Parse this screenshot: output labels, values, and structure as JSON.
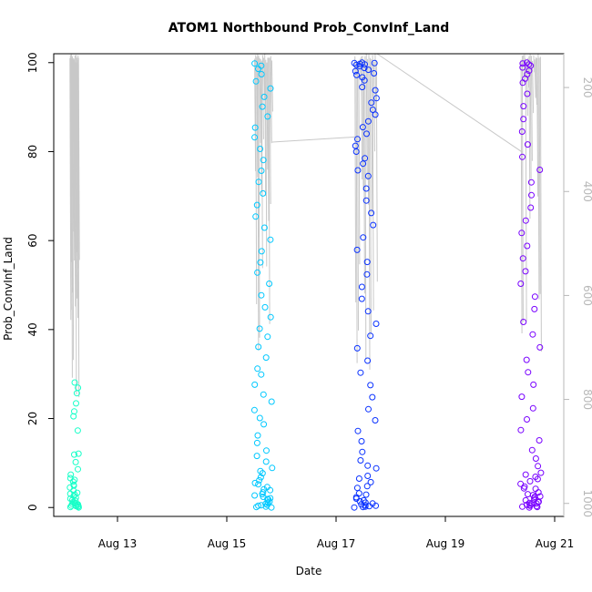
{
  "chart_data": {
    "type": "scatter",
    "title": "ATOM1 Northbound Prob_ConvInf_Land",
    "xlabel": "Date",
    "ylabel": "Prob_ConvInf_Land",
    "x_axis_type": "date",
    "xlim": [
      "2021-08-11T20:00",
      "2021-08-21T04:00"
    ],
    "ylim": [
      -2,
      102
    ],
    "x_ticks": [
      {
        "date": "2021-08-13",
        "label": "Aug 13"
      },
      {
        "date": "2021-08-15",
        "label": "Aug 15"
      },
      {
        "date": "2021-08-17",
        "label": "Aug 17"
      },
      {
        "date": "2021-08-19",
        "label": "Aug 19"
      },
      {
        "date": "2021-08-21",
        "label": "Aug 21"
      }
    ],
    "y_ticks": [
      0,
      20,
      40,
      60,
      80,
      100
    ],
    "secondary_y": {
      "side": "right",
      "color": "#b8b8b8",
      "reversed": true,
      "ylim": [
        1025,
        135
      ],
      "ticks": [
        200,
        400,
        600,
        800,
        1000
      ]
    },
    "grid": false,
    "legend": "none",
    "point_style": "open-circle",
    "pressure_trace_color": "#c8c8c8",
    "series": [
      {
        "color": "#17ffc8",
        "time_range": [
          "2021-08-12T03:00",
          "2021-08-12T07:00"
        ],
        "y": [
          0.3,
          0.5,
          0.8,
          1.2,
          0.1,
          0.6,
          2.0,
          3.1,
          0.4,
          1.7,
          4.5,
          0.9,
          2.6,
          5.8,
          6.2,
          0.2,
          1.1,
          3.8,
          7.4,
          8.6,
          10.2,
          11.9,
          0.7,
          2.2,
          4.9,
          12.1,
          17.3,
          20.5,
          21.6,
          23.4,
          25.7,
          26.9,
          28.1,
          0.0,
          1.5,
          3.3,
          5.1,
          6.6,
          0.3,
          2.9
        ]
      },
      {
        "color": "#00c8ff",
        "time_range": [
          "2021-08-15T12:00",
          "2021-08-15T20:00"
        ],
        "y": [
          0.2,
          0.5,
          1.1,
          1.8,
          2.4,
          3.0,
          3.9,
          4.6,
          5.5,
          6.8,
          7.7,
          8.9,
          10.3,
          11.6,
          12.8,
          14.5,
          16.2,
          18.7,
          20.1,
          21.9,
          23.8,
          25.4,
          27.6,
          29.9,
          31.2,
          33.7,
          36.1,
          38.4,
          40.2,
          42.8,
          45.0,
          47.7,
          50.3,
          52.8,
          55.1,
          57.6,
          60.2,
          62.9,
          65.4,
          68.0,
          70.6,
          73.2,
          75.7,
          78.1,
          80.6,
          83.2,
          85.4,
          87.9,
          90.1,
          92.3,
          94.2,
          95.8,
          97.4,
          98.6,
          99.3,
          99.8,
          0.1,
          0.6,
          1.3,
          2.7,
          4.1,
          6.1,
          8.2,
          0.4,
          1.9,
          3.4,
          5.2,
          0.8,
          2.1,
          0.0
        ]
      },
      {
        "color": "#0a32ff",
        "time_range": [
          "2021-08-17T08:00",
          "2021-08-17T18:00"
        ],
        "y": [
          0.1,
          0.4,
          0.9,
          1.6,
          2.3,
          3.2,
          4.4,
          5.7,
          7.1,
          8.8,
          10.6,
          12.5,
          14.9,
          17.2,
          19.6,
          22.1,
          24.8,
          27.5,
          30.3,
          33.0,
          35.8,
          38.6,
          41.3,
          44.1,
          46.9,
          49.6,
          52.4,
          55.2,
          57.9,
          60.7,
          63.5,
          66.2,
          69.0,
          71.7,
          74.5,
          77.3,
          80.0,
          82.8,
          85.5,
          88.3,
          91.0,
          93.8,
          96.0,
          97.6,
          98.8,
          99.5,
          99.9,
          100.0,
          99.7,
          99.2,
          98.1,
          96.7,
          94.5,
          92.0,
          89.4,
          86.8,
          84.0,
          81.3,
          78.5,
          75.8,
          0.2,
          0.7,
          1.4,
          2.9,
          4.8,
          6.5,
          9.4,
          0.3,
          1.1,
          2.0,
          0.0,
          0.5,
          99.6,
          99.9,
          98.4,
          97.2
        ]
      },
      {
        "color": "#7800ff",
        "time_range": [
          "2021-08-20T09:00",
          "2021-08-20T18:00"
        ],
        "y": [
          0.2,
          0.6,
          1.0,
          1.7,
          2.5,
          3.4,
          4.3,
          5.3,
          6.4,
          7.8,
          9.3,
          11.0,
          12.9,
          15.1,
          17.4,
          19.8,
          22.3,
          24.9,
          27.6,
          30.4,
          33.2,
          36.0,
          38.9,
          41.7,
          44.6,
          47.4,
          50.3,
          53.1,
          56.0,
          58.8,
          61.7,
          64.5,
          67.4,
          70.2,
          73.1,
          75.9,
          78.8,
          81.6,
          84.5,
          87.3,
          90.2,
          93.0,
          95.5,
          97.4,
          98.9,
          99.6,
          100.0,
          0.1,
          0.4,
          0.8,
          1.3,
          2.1,
          3.0,
          4.2,
          5.9,
          7.4,
          0.3,
          1.6,
          2.8,
          0.0,
          0.5,
          1.2,
          99.8,
          99.3,
          98.2,
          96.4,
          0.9,
          2.4,
          4.7,
          6.9
        ]
      }
    ]
  }
}
